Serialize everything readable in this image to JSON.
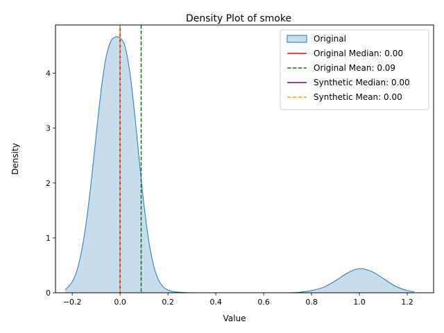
{
  "chart_data": {
    "type": "area",
    "title": "Density Plot of smoke",
    "xlabel": "Value",
    "ylabel": "Density",
    "xlim": [
      -0.27,
      1.31
    ],
    "ylim": [
      0,
      4.88
    ],
    "x_ticks": [
      -0.2,
      0.0,
      0.2,
      0.4,
      0.6,
      0.8,
      1.0,
      1.2
    ],
    "x_tick_labels": [
      "−0.2",
      "0.0",
      "0.2",
      "0.4",
      "0.6",
      "0.8",
      "1.0",
      "1.2"
    ],
    "y_ticks": [
      0,
      1,
      2,
      3,
      4
    ],
    "y_tick_labels": [
      "0",
      "1",
      "2",
      "3",
      "4"
    ],
    "grid": false,
    "legend_position": "top-right",
    "series": [
      {
        "name": "Original",
        "kind": "kde",
        "line_color": "#1f77b4",
        "fill_color": "#1f77b4",
        "fill_alpha": 0.25,
        "x": [
          -0.23,
          -0.2,
          -0.18,
          -0.16,
          -0.14,
          -0.12,
          -0.1,
          -0.08,
          -0.06,
          -0.04,
          -0.02,
          0.0,
          0.02,
          0.04,
          0.06,
          0.08,
          0.1,
          0.12,
          0.14,
          0.16,
          0.18,
          0.2,
          0.22,
          0.25,
          0.3,
          0.4,
          0.5,
          0.6,
          0.7,
          0.75,
          0.8,
          0.85,
          0.9,
          0.95,
          1.0,
          1.05,
          1.1,
          1.15,
          1.2,
          1.23
        ],
        "y": [
          0.05,
          0.2,
          0.41,
          0.78,
          1.33,
          2.05,
          2.87,
          3.66,
          4.26,
          4.57,
          4.66,
          4.64,
          4.5,
          4.04,
          3.3,
          2.42,
          1.6,
          0.94,
          0.5,
          0.24,
          0.11,
          0.05,
          0.02,
          0.01,
          0.0,
          0.0,
          0.0,
          0.0,
          0.0,
          0.01,
          0.04,
          0.1,
          0.22,
          0.36,
          0.44,
          0.39,
          0.26,
          0.12,
          0.04,
          0.02
        ]
      }
    ],
    "vlines": [
      {
        "label": "Original Median: 0.00",
        "x": 0.0,
        "color": "#ff0000",
        "dash": "solid"
      },
      {
        "label": "Original Mean: 0.09",
        "x": 0.088,
        "color": "#008000",
        "dash": "dashed"
      },
      {
        "label": "Synthetic Median: 0.00",
        "x": 0.0,
        "color": "#800080",
        "dash": "solid"
      },
      {
        "label": "Synthetic Mean: 0.00",
        "x": 0.0,
        "color": "#ffa500",
        "dash": "dashed"
      }
    ]
  }
}
